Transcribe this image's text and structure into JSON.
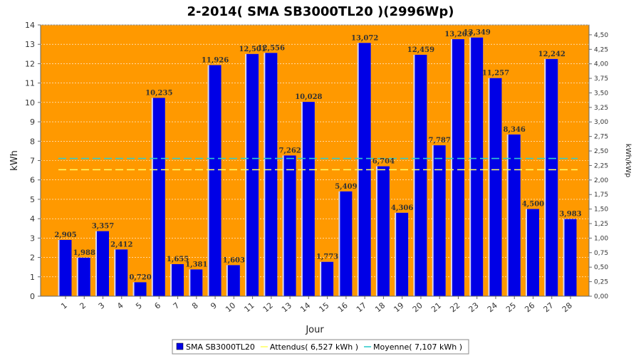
{
  "chart_data": {
    "type": "bar",
    "title": "2-2014( SMA SB3000TL20 )(2996Wp)",
    "xlabel": "Jour",
    "ylabel": "kWh",
    "ylabel_right": "kWh/kWp",
    "ylim": [
      0,
      14
    ],
    "ylim_right": [
      0,
      4.67
    ],
    "y_ticks": [
      "0",
      "1",
      "2",
      "3",
      "4",
      "5",
      "6",
      "7",
      "8",
      "9",
      "10",
      "11",
      "12",
      "13",
      "14"
    ],
    "y_right_ticks": [
      "0,00",
      "0,25",
      "0,50",
      "0,75",
      "1,00",
      "1,25",
      "1,50",
      "1,75",
      "2,00",
      "2,25",
      "2,50",
      "2,75",
      "3,00",
      "3,25",
      "3,50",
      "3,75",
      "4,00",
      "4,25",
      "4,50"
    ],
    "categories": [
      "1",
      "2",
      "3",
      "4",
      "5",
      "6",
      "7",
      "8",
      "9",
      "10",
      "11",
      "12",
      "13",
      "14",
      "15",
      "16",
      "17",
      "18",
      "19",
      "20",
      "21",
      "22",
      "23",
      "24",
      "25",
      "26",
      "27",
      "28"
    ],
    "series": [
      {
        "name": "SMA SB3000TL20",
        "values": [
          2.905,
          1.988,
          3.357,
          2.412,
          0.72,
          10.235,
          1.655,
          1.381,
          11.926,
          1.603,
          12.501,
          12.556,
          7.262,
          10.028,
          1.773,
          5.409,
          13.072,
          6.704,
          4.306,
          12.459,
          7.787,
          13.263,
          13.349,
          11.257,
          8.346,
          4.5,
          12.242,
          3.983
        ],
        "labels": [
          "2,905",
          "1,988",
          "3,357",
          "2,412",
          "0,720",
          "10,235",
          "1,655",
          "1,381",
          "11,926",
          "1,603",
          "12,501",
          "12,556",
          "7,262",
          "10,028",
          "1,773",
          "5,409",
          "13,072",
          "6,704",
          "4,306",
          "12,459",
          "7,787",
          "13,263",
          "13,349",
          "11,257",
          "8,346",
          "4,500",
          "12,242",
          "3,983"
        ],
        "color": "#0000e6"
      }
    ],
    "lines": [
      {
        "name": "Attendus( 6,527 kWh )",
        "value": 6.527,
        "color": "#ffff66",
        "style": "dashed"
      },
      {
        "name": "Moyenne( 7,107 kWh )",
        "value": 7.107,
        "color": "#33cccc",
        "style": "dashed"
      }
    ],
    "plot_background": "#ff9900",
    "grid": true,
    "legend_position": "bottom-center"
  }
}
